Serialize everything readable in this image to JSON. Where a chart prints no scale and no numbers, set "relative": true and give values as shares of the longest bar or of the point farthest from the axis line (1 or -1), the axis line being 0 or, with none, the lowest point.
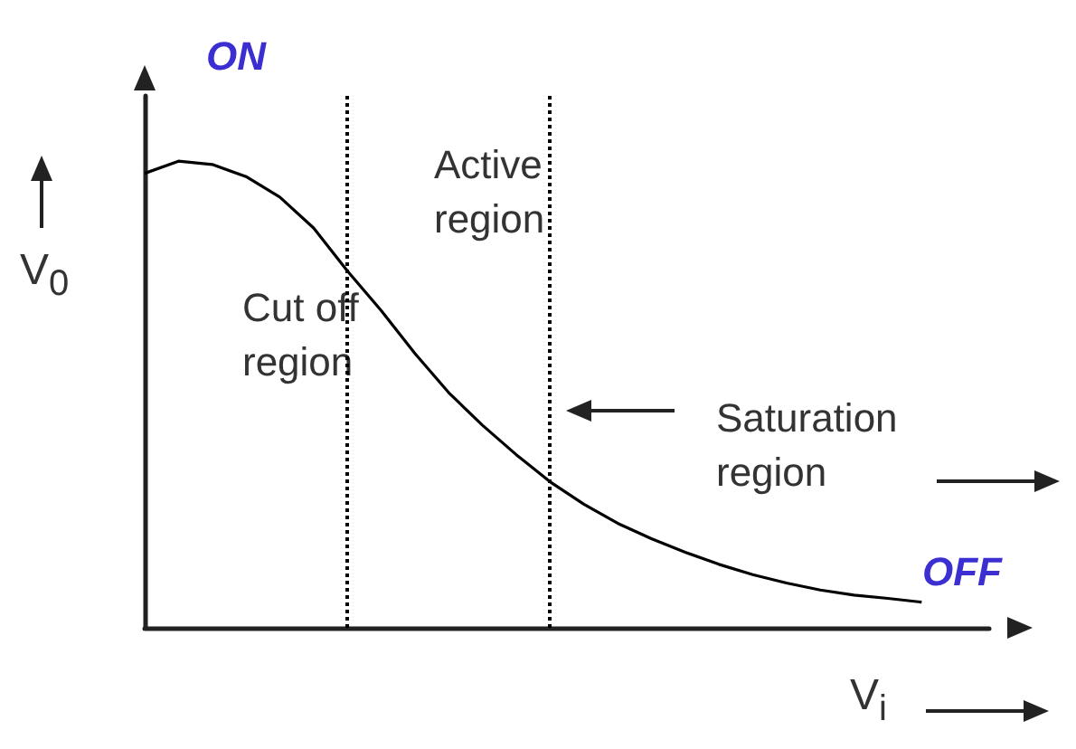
{
  "chart_data": {
    "type": "line",
    "xlabel": "V$_{i}$",
    "ylabel": "V$_{0}$",
    "relative": true,
    "categories": [
      null,
      null,
      null,
      null,
      null,
      null,
      null,
      null,
      null,
      null,
      null,
      null,
      null,
      null,
      null,
      null,
      null,
      null,
      null,
      null,
      null,
      null,
      null,
      null,
      null,
      null
    ],
    "series": [
      {
        "color": "#000000",
        "values": [
          0.974,
          1,
          0.993,
          0.967,
          0.923,
          0.857,
          0.765,
          0.68,
          0.588,
          0.504,
          0.434,
          0.371,
          0.313,
          0.265,
          0.224,
          0.191,
          0.162,
          0.136,
          0.114,
          0.096,
          0.081,
          0.07,
          0.063,
          0.055,
          null,
          null
        ]
      }
    ],
    "annotations": [
      "ON",
      "Active\nregion",
      "Cut off\nregion",
      "Saturation\nregion",
      "OFF"
    ],
    "grid": false,
    "marker": "none",
    "line_style": "solid"
  }
}
